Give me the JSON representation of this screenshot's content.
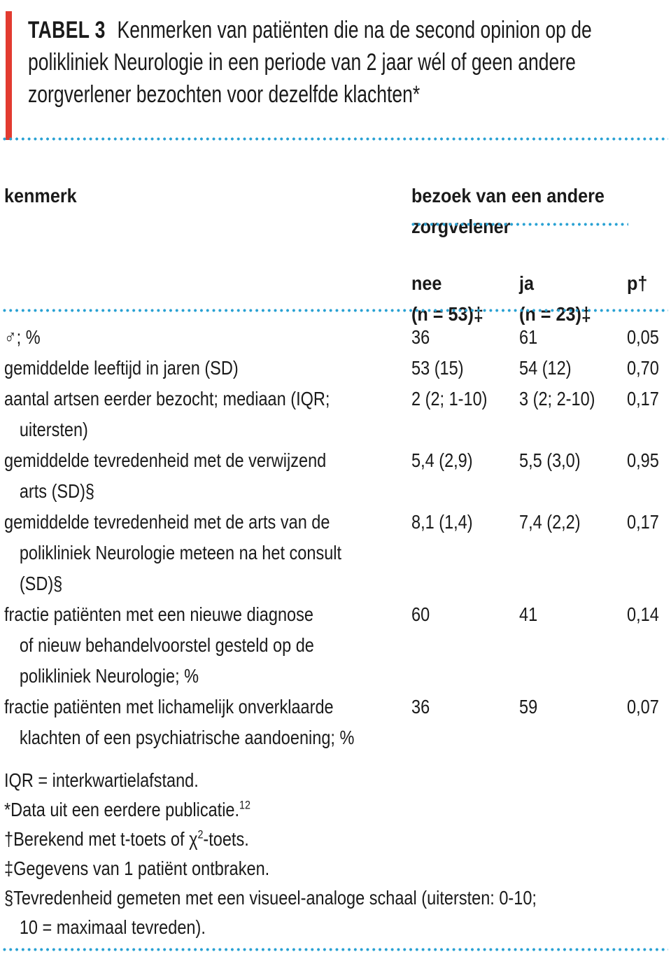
{
  "colors": {
    "accent_red": "#e23b30",
    "dotted_rule_blue": "#28a1d3",
    "text_ink": "#1a1a1a"
  },
  "title": {
    "label": "TABEL 3",
    "rest": " Kenmerken van patiënten die na de second opinion op de\npolikliniek Neurologie in een periode van 2 jaar wél of geen andere\nzorgverlener bezochten voor dezelfde klachten*"
  },
  "table": {
    "col_header_left": "kenmerk",
    "col_group_header": "bezoek van een andere\nzorgvelener",
    "sub_headers": [
      "nee\n(n = 53)‡",
      "ja\n(n = 23)‡",
      "p†"
    ],
    "rows": [
      {
        "label": "♂; %",
        "nee": "36",
        "ja": "61",
        "p": "0,05"
      },
      {
        "label": "gemiddelde leeftijd in jaren (SD)",
        "nee": "53 (15)",
        "ja": "54 (12)",
        "p": "0,70"
      },
      {
        "label": "aantal artsen eerder bezocht; mediaan (IQR;\nuitersten)",
        "nee": "2 (2; 1-10)",
        "ja": "3 (2; 2-10)",
        "p": "0,17"
      },
      {
        "label": "gemiddelde tevredenheid met de verwijzend\narts (SD)§",
        "nee": "5,4 (2,9)",
        "ja": "5,5 (3,0)",
        "p": "0,95"
      },
      {
        "label": "gemiddelde tevredenheid met de arts van de\npolikliniek Neurologie meteen na het consult\n(SD)§",
        "nee": "8,1 (1,4)",
        "ja": "7,4 (2,2)",
        "p": "0,17"
      },
      {
        "label": "fractie patiënten met een nieuwe diagnose\nof nieuw behandelvoorstel gesteld op de\npolikliniek Neurologie; %",
        "nee": "60",
        "ja": "41",
        "p": "0,14"
      },
      {
        "label": "fractie patiënten met lichamelijk onverklaarde\nklachten of een psychiatrische aandoening; %",
        "nee": "36",
        "ja": "59",
        "p": "0,07"
      }
    ]
  },
  "footnotes": [
    {
      "segments": [
        {
          "t": "IQR = interkwartielafstand."
        }
      ]
    },
    {
      "segments": [
        {
          "t": "*Data uit een eerdere publicatie."
        },
        {
          "t": "12",
          "sup": true
        }
      ]
    },
    {
      "segments": [
        {
          "t": "†Berekend met t-toets of χ"
        },
        {
          "t": "2",
          "sup": true
        },
        {
          "t": "-toets."
        }
      ]
    },
    {
      "segments": [
        {
          "t": "‡Gegevens van 1 patiënt ontbraken."
        }
      ]
    },
    {
      "segments": [
        {
          "t": "§Tevredenheid gemeten met een visueel-analoge schaal (uitersten: 0-10;\n10 = maximaal tevreden)."
        }
      ]
    }
  ]
}
